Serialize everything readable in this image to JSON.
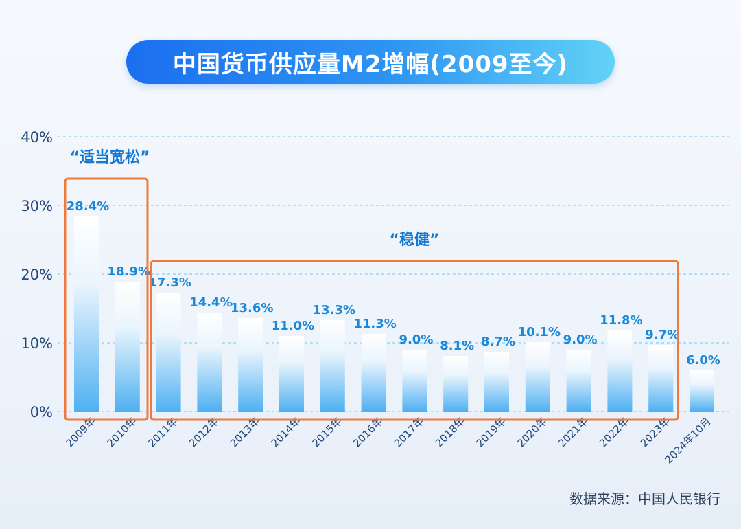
{
  "title": "中国货币供应量M2增幅(2009至今)",
  "source": "数据来源：中国人民银行",
  "chart_data": {
    "type": "bar",
    "title": "中国货币供应量M2增幅(2009至今)",
    "xlabel": "",
    "ylabel": "",
    "ylim": [
      0,
      40
    ],
    "yticks": [
      "0%",
      "10%",
      "20%",
      "30%",
      "40%"
    ],
    "grid": true,
    "categories": [
      "2009年",
      "2010年",
      "2011年",
      "2012年",
      "2013年",
      "2014年",
      "2015年",
      "2016年",
      "2017年",
      "2018年",
      "2019年",
      "2020年",
      "2021年",
      "2022年",
      "2023年",
      "2024年10月"
    ],
    "values": [
      28.4,
      18.9,
      17.3,
      14.4,
      13.6,
      11.0,
      13.3,
      11.3,
      9.0,
      8.1,
      8.7,
      10.1,
      9.0,
      11.8,
      9.7,
      6.0
    ],
    "value_labels": [
      "28.4%",
      "18.9%",
      "17.3%",
      "14.4%",
      "13.6%",
      "11.0%",
      "13.3%",
      "11.3%",
      "9.0%",
      "8.1%",
      "8.7%",
      "10.1%",
      "9.0%",
      "11.8%",
      "9.7%",
      "6.0%"
    ],
    "annotations": [
      {
        "text": "“适当宽松”",
        "from_index": 0,
        "to_index": 1
      },
      {
        "text": "“稳健”",
        "from_index": 2,
        "to_index": 14
      }
    ]
  },
  "colors": {
    "bar_top": "#ffffff",
    "bar_bottom": "#4fb0f2",
    "value_label": "#1a87d8",
    "annotation_box": "#f07a3e",
    "annotation_text": "#1477d2",
    "axis_text": "#23487a",
    "grid": "#8fcdf0"
  }
}
